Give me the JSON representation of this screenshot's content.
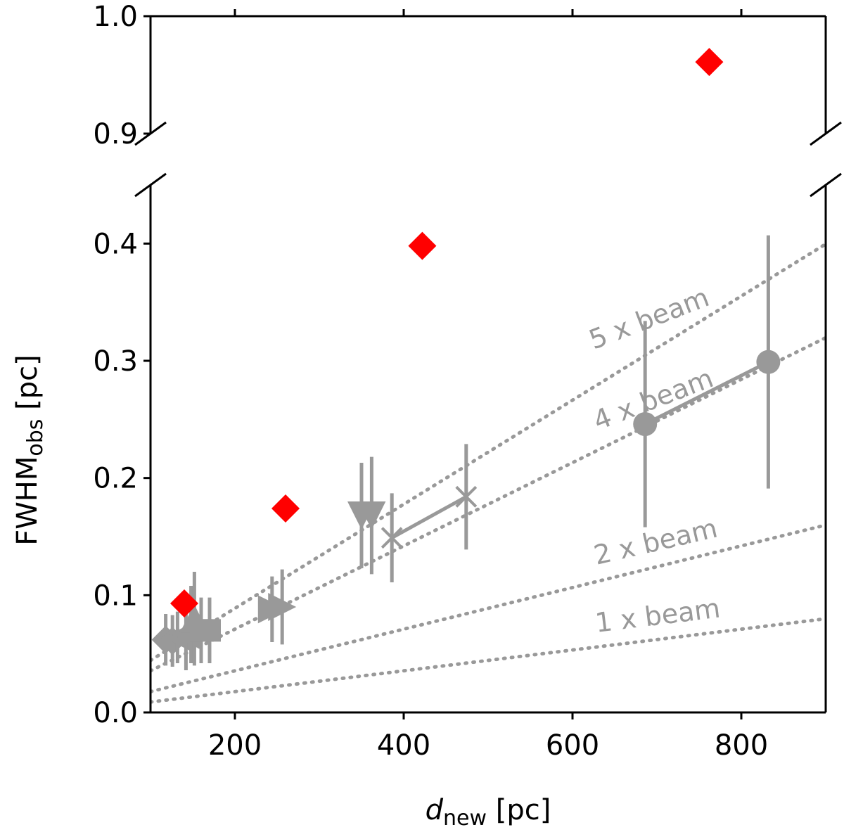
{
  "chart_data": {
    "type": "scatter",
    "xlabel": {
      "main": "d",
      "sub": "new",
      "unit": " [pc]"
    },
    "ylabel": {
      "main": "FWHM",
      "sub": "obs",
      "unit": " [pc]"
    },
    "xlim": [
      100,
      900
    ],
    "ylim_upper": [
      0.9,
      1.0
    ],
    "ylim_lower": [
      0.0,
      0.45
    ],
    "xticks": [
      200,
      400,
      600,
      800
    ],
    "xtick_labels": [
      "200",
      "400",
      "600",
      "800"
    ],
    "yticks_upper": [
      0.9,
      1.0
    ],
    "ytick_labels_upper": [
      "0.9",
      "1.0"
    ],
    "yticks_lower": [
      0.0,
      0.1,
      0.2,
      0.3,
      0.4
    ],
    "ytick_labels_lower": [
      "0.0",
      "0.1",
      "0.2",
      "0.3",
      "0.4"
    ],
    "beam_lines": [
      {
        "label": "1 x beam",
        "slope": 8.88e-05
      },
      {
        "label": "2 x beam",
        "slope": 0.0001776
      },
      {
        "label": "4 x beam",
        "slope": 0.0003552
      },
      {
        "label": "5 x beam",
        "slope": 0.000444
      }
    ],
    "red_points": [
      {
        "x": 140,
        "y": 0.093
      },
      {
        "x": 260,
        "y": 0.174
      },
      {
        "x": 422,
        "y": 0.398
      },
      {
        "x": 762,
        "y": 0.961
      }
    ],
    "gray_series": [
      {
        "name": "left-diamond",
        "marker": "diamond",
        "connect": true,
        "points": [
          {
            "x": 118,
            "y": 0.062,
            "err": 0.022
          },
          {
            "x": 126,
            "y": 0.061,
            "err": 0.022
          }
        ]
      },
      {
        "name": "left-triangle",
        "marker": "triangle-left",
        "connect": true,
        "points": [
          {
            "x": 132,
            "y": 0.064,
            "err": 0.022
          },
          {
            "x": 142,
            "y": 0.066,
            "err": 0.03
          }
        ]
      },
      {
        "name": "up-triangle",
        "marker": "triangle-up",
        "connect": true,
        "points": [
          {
            "x": 148,
            "y": 0.075,
            "err": 0.033
          },
          {
            "x": 152,
            "y": 0.08,
            "err": 0.04
          }
        ]
      },
      {
        "name": "square",
        "marker": "square",
        "connect": true,
        "points": [
          {
            "x": 160,
            "y": 0.07,
            "err": 0.028
          },
          {
            "x": 170,
            "y": 0.07,
            "err": 0.028
          }
        ]
      },
      {
        "name": "right-triangle",
        "marker": "triangle-right",
        "connect": true,
        "points": [
          {
            "x": 244,
            "y": 0.088,
            "err": 0.028
          },
          {
            "x": 256,
            "y": 0.09,
            "err": 0.032
          }
        ]
      },
      {
        "name": "down-triangle",
        "marker": "triangle-down",
        "connect": true,
        "points": [
          {
            "x": 350,
            "y": 0.168,
            "err": 0.045
          },
          {
            "x": 362,
            "y": 0.168,
            "err": 0.05
          }
        ]
      },
      {
        "name": "x-marker",
        "marker": "x",
        "connect": true,
        "points": [
          {
            "x": 386,
            "y": 0.149,
            "err": 0.038
          },
          {
            "x": 474,
            "y": 0.184,
            "err": 0.045
          }
        ]
      },
      {
        "name": "circle",
        "marker": "circle",
        "connect": true,
        "points": [
          {
            "x": 686,
            "y": 0.246,
            "err": 0.088
          },
          {
            "x": 832,
            "y": 0.299,
            "err": 0.108
          }
        ]
      }
    ],
    "colors": {
      "red": "#ff0000",
      "gray": "#999999",
      "axis": "#000000"
    }
  }
}
